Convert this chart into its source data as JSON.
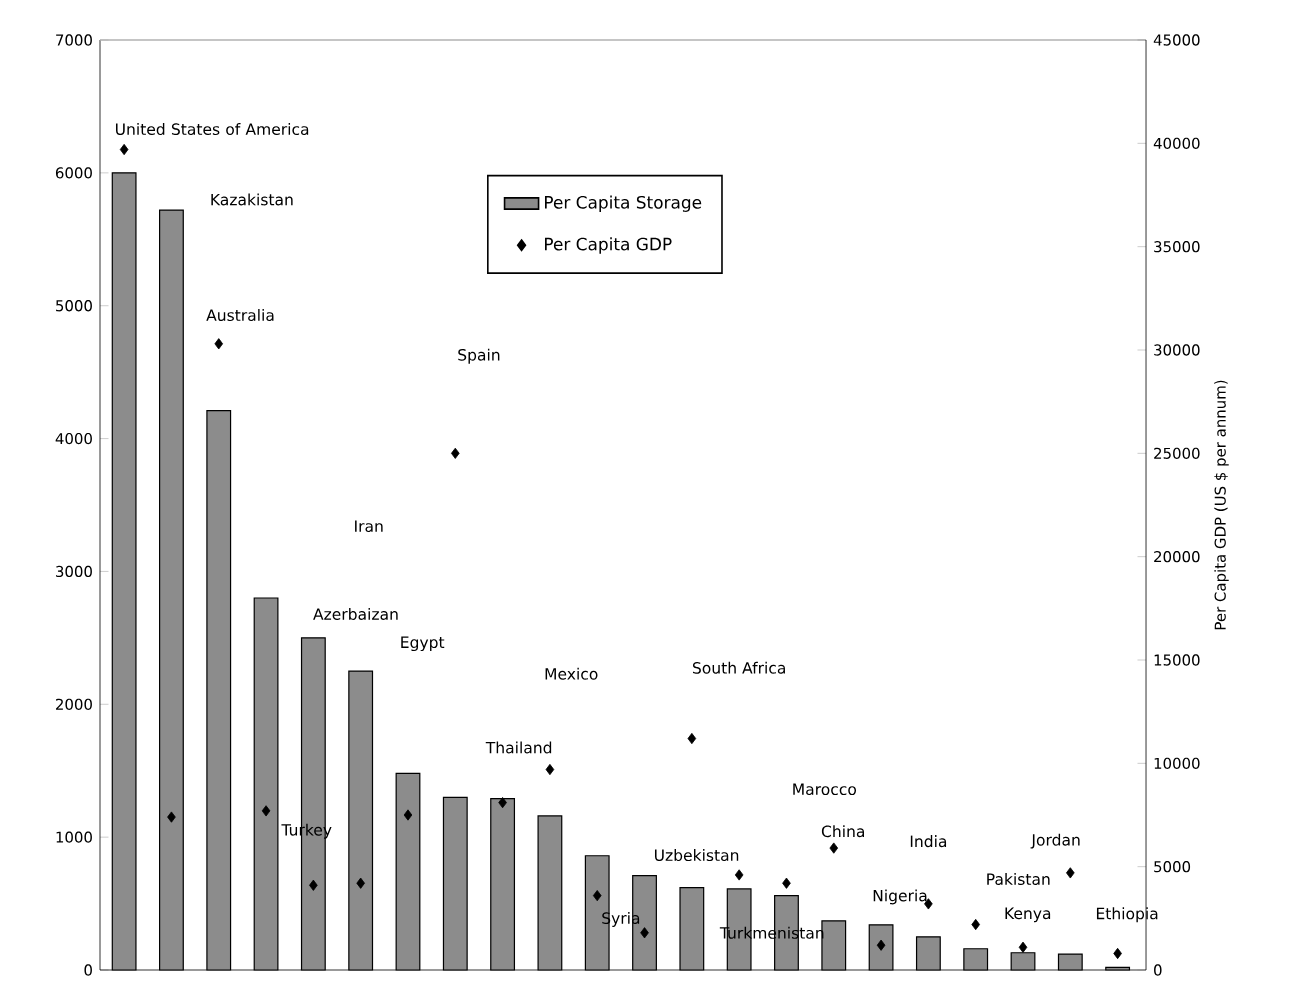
{
  "chart_data": {
    "type": "bar",
    "categories": [
      null,
      null,
      null,
      null,
      null,
      null,
      null,
      null,
      null,
      null,
      null,
      null,
      null,
      null,
      null,
      null,
      null,
      null,
      null,
      null,
      null,
      null
    ],
    "series": [
      {
        "name": "Per Capita Storage",
        "color": "#8c8c8c",
        "values": [
          6000,
          5720,
          4210,
          2800,
          2500,
          2250,
          1480,
          1300,
          1290,
          1160,
          860,
          710,
          620,
          610,
          560,
          370,
          340,
          250,
          160,
          130,
          120,
          20
        ]
      },
      {
        "name": "Per Capita GDP",
        "type": "scatter",
        "axis": "y2",
        "color": "#000000",
        "marker": "diamond",
        "values": [
          39700,
          7400,
          30300,
          7700,
          4100,
          4200,
          7500,
          25000,
          8100,
          9700,
          3600,
          1800,
          11200,
          4600,
          4200,
          5900,
          1200,
          3200,
          2200,
          1100,
          4700,
          800
        ]
      }
    ],
    "ylim": [
      0,
      7000
    ],
    "yticks": [
      0,
      1000,
      2000,
      3000,
      4000,
      5000,
      6000,
      7000
    ],
    "y2lim": [
      0,
      45000
    ],
    "y2ticks": [
      0,
      5000,
      10000,
      15000,
      20000,
      25000,
      30000,
      35000,
      40000,
      45000
    ],
    "y2label": "Per Capita GDP (US $ per annum)",
    "legend": "top",
    "annotations": [
      "United States of America",
      "Kazakistan",
      "Australia",
      "Spain",
      "Iran",
      "Azerbaizan",
      "Egypt",
      "Mexico",
      "South Africa",
      "Thailand",
      "Turkey",
      "Marocco",
      "Uzbekistan",
      "China",
      "India",
      "Jordan",
      "Syria",
      "Nigeria",
      "Pakistan",
      "Kenya",
      "Turkmenistan",
      "Ethiopia"
    ]
  }
}
